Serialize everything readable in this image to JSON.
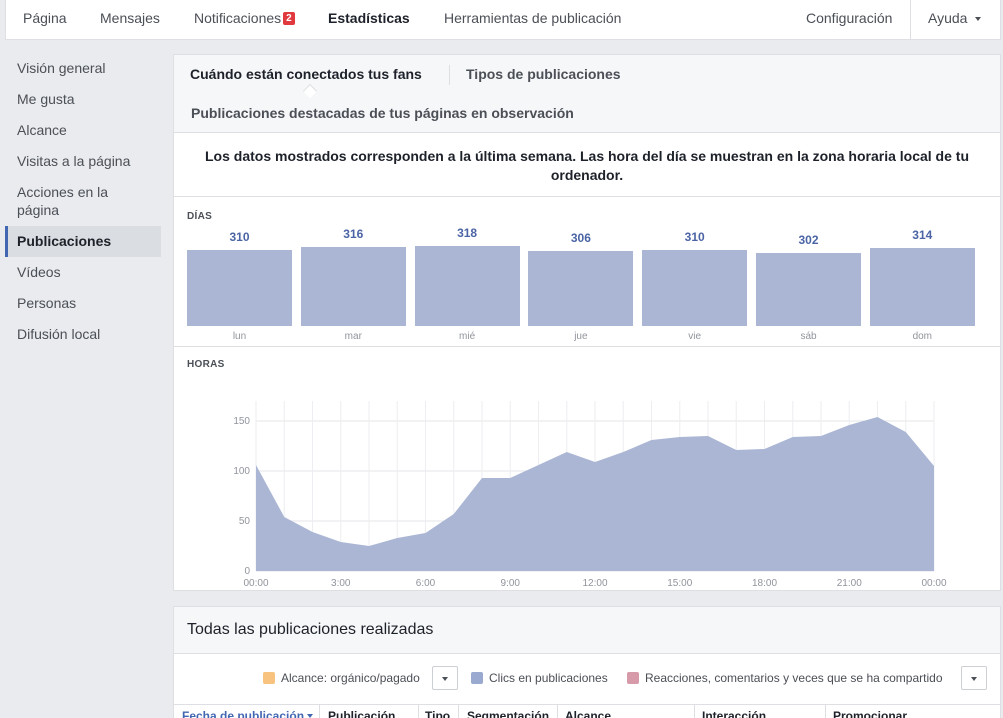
{
  "topnav": {
    "items": [
      "Página",
      "Mensajes",
      "Notificaciones",
      "Estadísticas",
      "Herramientas de publicación"
    ],
    "notifications_count": "2",
    "settings": "Configuración",
    "help": "Ayuda"
  },
  "sidebar": {
    "items": [
      "Visión general",
      "Me gusta",
      "Alcance",
      "Visitas a la página",
      "Acciones en la página",
      "Publicaciones",
      "Vídeos",
      "Personas",
      "Difusión local"
    ]
  },
  "tabs": {
    "items": [
      "Cuándo están conectados tus fans",
      "Tipos de publicaciones",
      "Publicaciones destacadas de tus páginas en observación"
    ]
  },
  "info_text": "Los datos mostrados corresponden a la última semana. Las hora del día se muestran en la zona horaria local de tu ordenador.",
  "days": {
    "label": "DÍAS",
    "labels": [
      "lun",
      "mar",
      "mié",
      "jue",
      "vie",
      "sáb",
      "dom"
    ],
    "values": [
      "310",
      "316",
      "318",
      "306",
      "310",
      "302",
      "314"
    ]
  },
  "hours": {
    "label": "HORAS"
  },
  "chart_data": [
    {
      "type": "bar",
      "categories": [
        "lun",
        "mar",
        "mié",
        "jue",
        "vie",
        "sáb",
        "dom"
      ],
      "values": [
        310,
        316,
        318,
        306,
        310,
        302,
        314
      ],
      "title": "DÍAS"
    },
    {
      "type": "area",
      "title": "HORAS",
      "x": [
        "00:00",
        "01:00",
        "02:00",
        "03:00",
        "04:00",
        "05:00",
        "06:00",
        "07:00",
        "08:00",
        "09:00",
        "10:00",
        "11:00",
        "12:00",
        "13:00",
        "14:00",
        "15:00",
        "16:00",
        "17:00",
        "18:00",
        "19:00",
        "20:00",
        "21:00",
        "22:00",
        "23:00",
        "00:00"
      ],
      "values": [
        106,
        54,
        39,
        29,
        25,
        33,
        38,
        57,
        93,
        93,
        106,
        119,
        109,
        119,
        131,
        134,
        135,
        121,
        122,
        134,
        135,
        146,
        154,
        139,
        105
      ],
      "ylim": [
        0,
        170
      ],
      "yticks": [
        0,
        50,
        100,
        150
      ],
      "xticks": [
        "00:00",
        "3:00",
        "6:00",
        "9:00",
        "12:00",
        "15:00",
        "18:00",
        "21:00",
        "00:00"
      ],
      "color": "#aab6d3"
    }
  ],
  "posts": {
    "title": "Todas las publicaciones realizadas",
    "legend": [
      "Alcance: orgánico/pagado",
      "Clics en publicaciones",
      "Reacciones, comentarios y veces que se ha compartido"
    ],
    "legend_colors": [
      "#f7c37e",
      "#9aa9cf",
      "#d79aa9"
    ],
    "columns": [
      "Fecha de publicación",
      "Publicación",
      "Tipo",
      "Segmentación",
      "Alcance",
      "Interacción",
      "Promocionar"
    ]
  }
}
